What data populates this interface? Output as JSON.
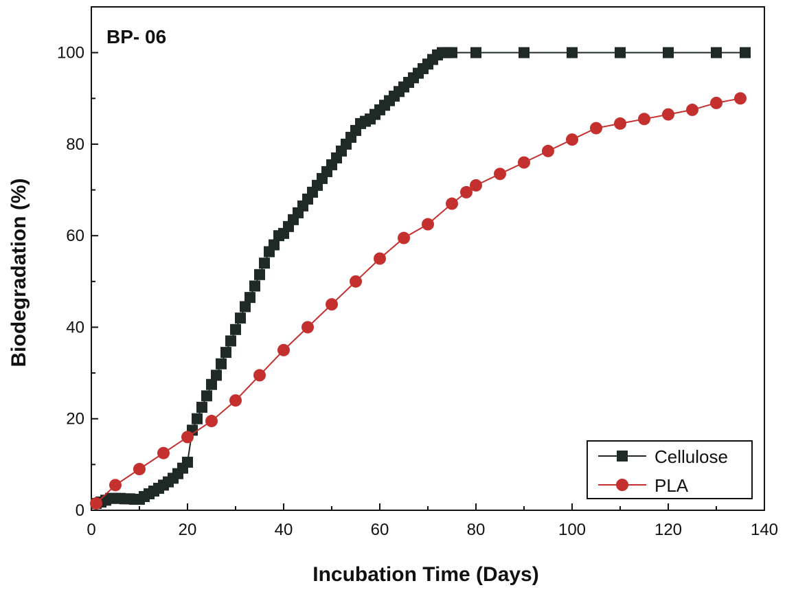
{
  "chart_data": {
    "type": "line",
    "panel_label": "BP- 06",
    "xlabel": "Incubation Time (Days)",
    "ylabel": "Biodegradation (%)",
    "xlim": [
      0,
      140
    ],
    "ylim": [
      0,
      110
    ],
    "xticks": [
      0,
      20,
      40,
      60,
      80,
      100,
      120,
      140
    ],
    "yticks": [
      0,
      20,
      40,
      60,
      80,
      100
    ],
    "grid": false,
    "legend_position": "bottom-right",
    "series": [
      {
        "name": "Cellulose",
        "color": "#1f2a26",
        "marker": "square",
        "x": [
          1,
          2,
          3,
          4,
          5,
          6,
          7,
          8,
          9,
          10,
          11,
          12,
          13,
          14,
          15,
          16,
          17,
          18,
          19,
          20,
          21,
          22,
          23,
          24,
          25,
          26,
          27,
          28,
          29,
          30,
          31,
          32,
          33,
          34,
          35,
          36,
          37,
          38,
          39,
          40,
          41,
          42,
          43,
          44,
          45,
          46,
          47,
          48,
          49,
          50,
          51,
          52,
          53,
          54,
          55,
          56,
          57,
          58,
          59,
          60,
          61,
          62,
          63,
          64,
          65,
          66,
          67,
          68,
          69,
          70,
          71,
          72,
          73,
          74,
          75,
          80,
          90,
          100,
          110,
          120,
          130,
          136
        ],
        "values": [
          1.5,
          1.8,
          2.2,
          2.6,
          2.6,
          2.6,
          2.5,
          2.5,
          2.4,
          2.4,
          3.0,
          3.6,
          4.2,
          4.8,
          5.5,
          6.2,
          7.0,
          8.0,
          9.2,
          10.5,
          17.5,
          20.0,
          22.5,
          25.0,
          27.5,
          29.5,
          32.0,
          34.5,
          37.0,
          39.5,
          42.0,
          44.5,
          46.5,
          49.0,
          51.5,
          54.0,
          56.5,
          58.0,
          60.0,
          60.5,
          62.0,
          63.5,
          65.0,
          66.5,
          68.0,
          69.5,
          71.0,
          72.5,
          74.0,
          75.5,
          77.0,
          78.5,
          80.0,
          81.5,
          83.0,
          84.5,
          85.0,
          85.5,
          86.5,
          87.5,
          88.5,
          89.5,
          90.5,
          91.5,
          92.5,
          93.5,
          94.5,
          95.5,
          96.5,
          97.5,
          98.5,
          99.5,
          100,
          100,
          100,
          100,
          100,
          100,
          100,
          100,
          100,
          100
        ]
      },
      {
        "name": "PLA",
        "color": "#c3302e",
        "marker": "circle",
        "x": [
          1,
          5,
          10,
          15,
          20,
          25,
          30,
          35,
          40,
          45,
          50,
          55,
          60,
          65,
          70,
          75,
          78,
          80,
          85,
          90,
          95,
          100,
          105,
          110,
          115,
          120,
          125,
          130,
          135
        ],
        "values": [
          1.5,
          5.5,
          9.0,
          12.5,
          16.0,
          19.5,
          24.0,
          29.5,
          35.0,
          40.0,
          45.0,
          50.0,
          55.0,
          59.5,
          62.5,
          67.0,
          69.5,
          71.0,
          73.5,
          76.0,
          78.5,
          81.0,
          83.5,
          84.5,
          85.5,
          86.5,
          87.5,
          89.0,
          90.0
        ]
      }
    ]
  }
}
